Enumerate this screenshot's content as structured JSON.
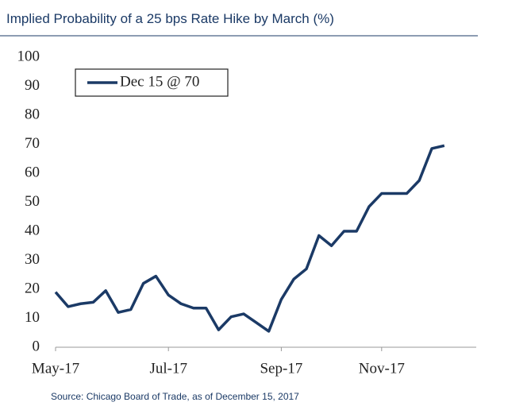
{
  "chart_data": {
    "type": "line",
    "title": "Implied Probability of a 25 bps Rate Hike by March (%)",
    "source": "Source: Chicago Board of Trade, as of December 15, 2017",
    "categories": [
      "May-17",
      null,
      null,
      null,
      null,
      null,
      null,
      null,
      null,
      "Jul-17",
      null,
      null,
      null,
      null,
      null,
      null,
      null,
      null,
      "Sep-17",
      null,
      null,
      null,
      null,
      null,
      null,
      null,
      "Nov-17",
      null,
      null,
      null,
      null,
      null
    ],
    "series": [
      {
        "name": "Dec 15 @ 70",
        "color": "#1b3a66",
        "values": [
          19,
          14,
          15,
          15.5,
          19.5,
          12,
          13,
          22,
          24.5,
          18,
          15,
          13.5,
          13.5,
          6,
          10.5,
          11.5,
          8.5,
          5.5,
          16.5,
          23.5,
          27,
          38.5,
          35,
          40,
          40,
          48.5,
          53,
          53,
          53,
          57.5,
          68.5,
          69.5
        ]
      }
    ],
    "ylim": [
      0,
      100
    ],
    "yticks": [
      0,
      10,
      20,
      30,
      40,
      50,
      60,
      70,
      80,
      90,
      100
    ],
    "legend": "upper-left",
    "grid": false
  }
}
